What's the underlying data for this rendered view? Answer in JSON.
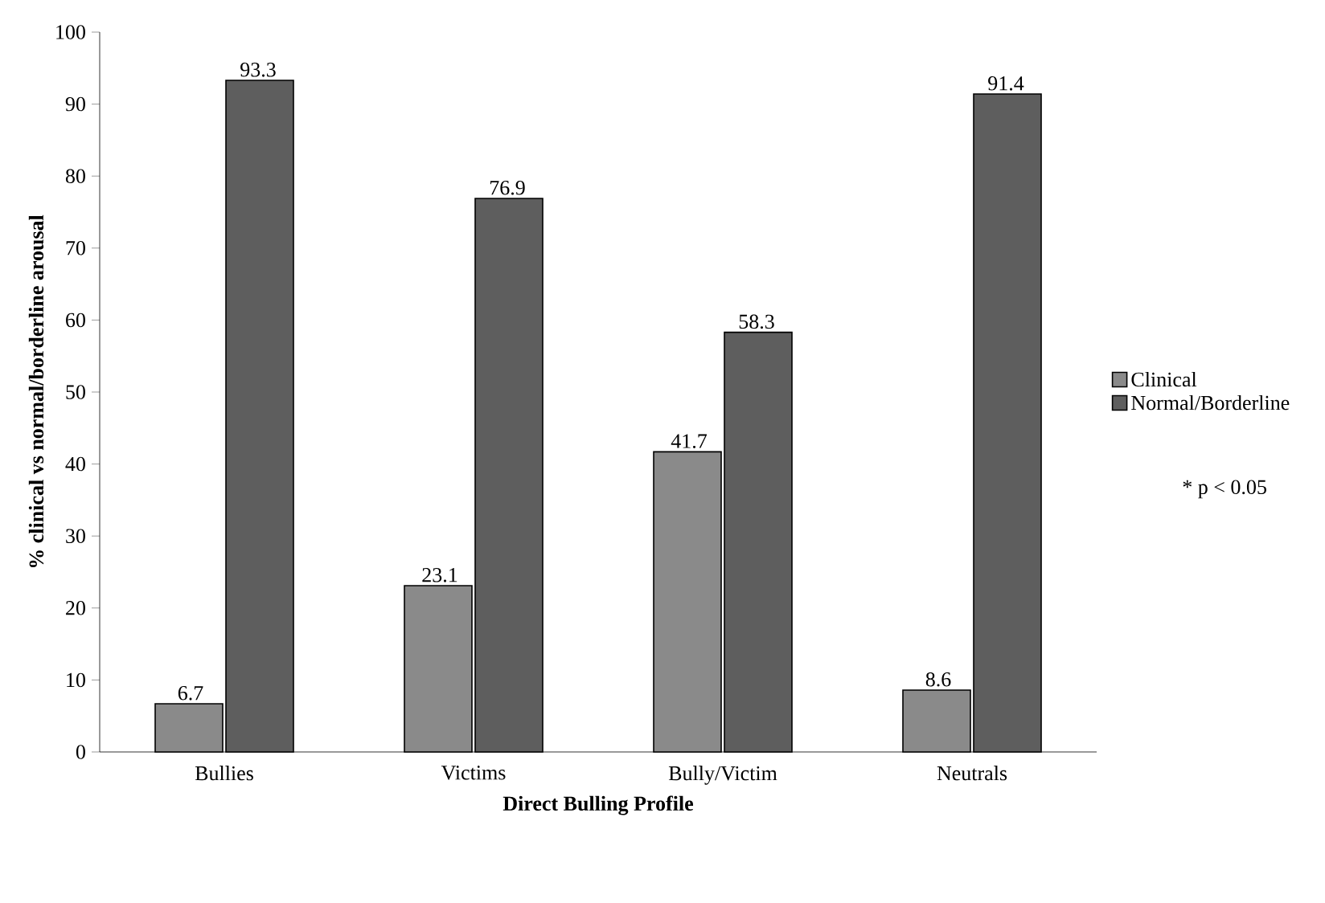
{
  "chart_data": {
    "type": "bar",
    "xlabel": "Direct Bulling Profile",
    "ylabel": "% clinical vs normal/borderline arousal",
    "categories": [
      "Bullies",
      "Victims",
      "Bully/Victim",
      "Neutrals"
    ],
    "series": [
      {
        "name": "Clinical",
        "color": "#8a8a8a",
        "values": [
          6.7,
          23.1,
          41.7,
          8.6
        ]
      },
      {
        "name": "Normal/Borderline",
        "color": "#5e5e5e",
        "values": [
          93.3,
          76.9,
          58.3,
          91.4
        ]
      }
    ],
    "ylim": [
      0,
      100
    ],
    "yticks": [
      0,
      10,
      20,
      30,
      40,
      50,
      60,
      70,
      80,
      90,
      100
    ],
    "data_labels": true,
    "legend": "right",
    "grid": false,
    "annotations": [
      "* p < 0.05"
    ]
  }
}
